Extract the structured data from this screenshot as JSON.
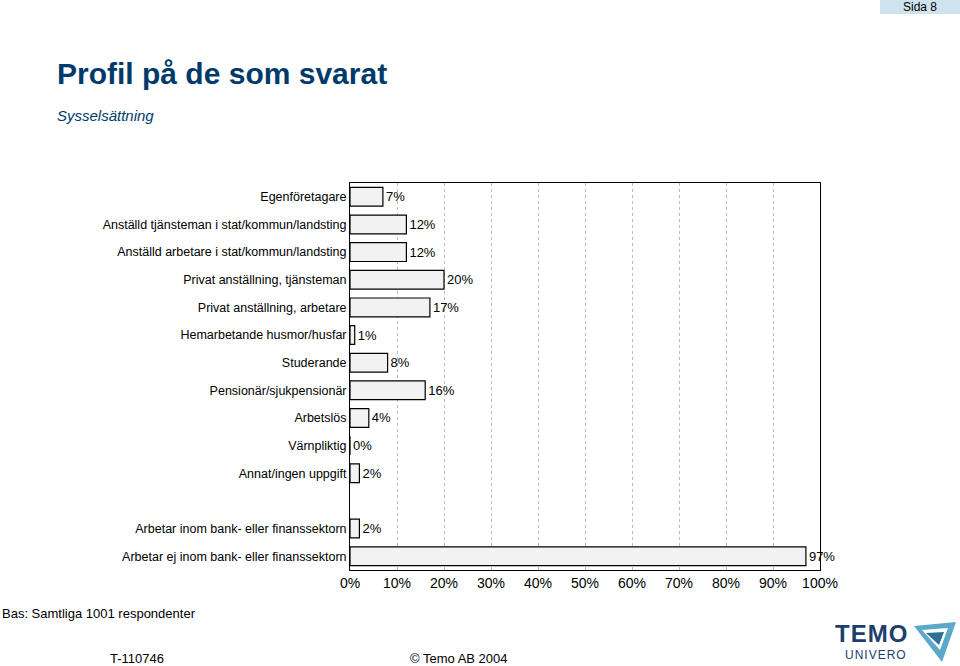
{
  "page": {
    "number": "Sida 8",
    "base": "Bas: Samtliga 1001 respondenter",
    "code": "T-110746",
    "copyright": "© Temo AB 2004",
    "logo": [
      "TEMO",
      "UNIVERO"
    ]
  },
  "chart_data": {
    "type": "bar",
    "orientation": "horizontal",
    "title": "Profil på de som svarat",
    "subtitle": "Sysselsättning",
    "categories": [
      "Egenföretagare",
      "Anställd tjänsteman i stat/kommun/landsting",
      "Anställd arbetare i stat/kommun/landsting",
      "Privat anställning, tjänsteman",
      "Privat anställning, arbetare",
      "Hemarbetande husmor/husfar",
      "Studerande",
      "Pensionär/sjukpensionär",
      "Arbetslös",
      "Värnpliktig",
      "Annat/ingen uppgift",
      null,
      "Arbetar inom bank- eller finanssektorn",
      "Arbetar ej inom bank- eller finanssektorn"
    ],
    "values": [
      7,
      12,
      12,
      20,
      17,
      1,
      8,
      16,
      4,
      0,
      2,
      null,
      2,
      97
    ],
    "value_labels": [
      "7%",
      "12%",
      "12%",
      "20%",
      "17%",
      "1%",
      "8%",
      "16%",
      "4%",
      "0%",
      "2%",
      null,
      "2%",
      "97%"
    ],
    "data_labels": true,
    "color": "#f2f2f2",
    "xlim": [
      0,
      100
    ],
    "xticks": [
      {
        "value": 0,
        "label": "0%"
      },
      {
        "value": 10,
        "label": "10%"
      },
      {
        "value": 20,
        "label": "20%"
      },
      {
        "value": 30,
        "label": "30%"
      },
      {
        "value": 40,
        "label": "40%"
      },
      {
        "value": 50,
        "label": "50%"
      },
      {
        "value": 60,
        "label": "60%"
      },
      {
        "value": 70,
        "label": "70%"
      },
      {
        "value": 80,
        "label": "80%"
      },
      {
        "value": 90,
        "label": "90%"
      },
      {
        "value": 100,
        "label": "100%"
      }
    ],
    "grid": true
  }
}
